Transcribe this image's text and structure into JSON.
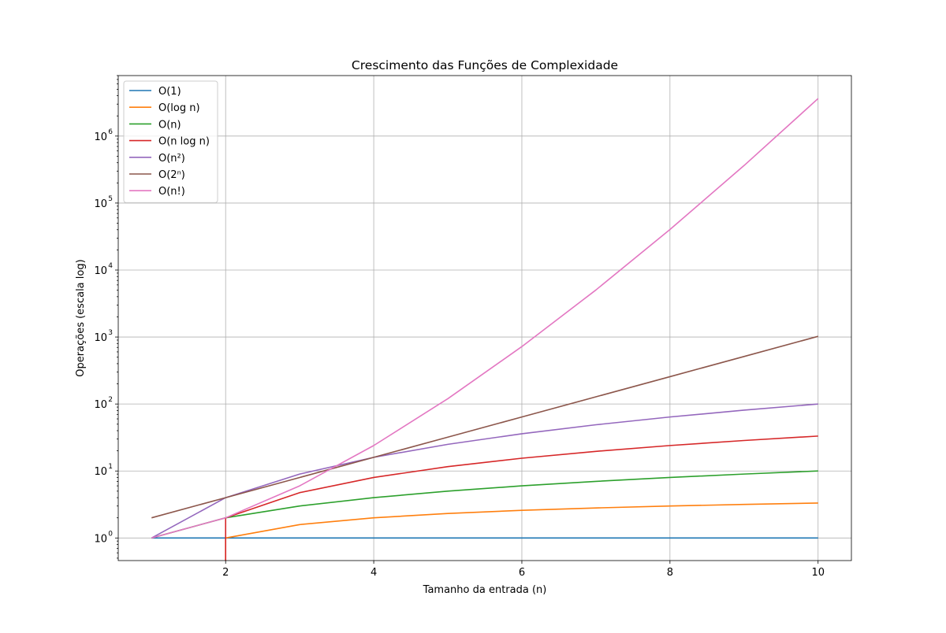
{
  "chart_data": {
    "type": "line",
    "title": "Crescimento das Funções de Complexidade",
    "xlabel": "Tamanho da entrada (n)",
    "ylabel": "Operações (escala log)",
    "xscale": "linear",
    "yscale": "log",
    "xlim": [
      0.55,
      10.45
    ],
    "ylim": [
      0.46,
      8000000
    ],
    "xticks": [
      2,
      4,
      6,
      8,
      10
    ],
    "xtick_labels": [
      "2",
      "4",
      "6",
      "8",
      "10"
    ],
    "yticks": [
      1,
      10,
      100,
      1000,
      10000,
      100000,
      1000000
    ],
    "ytick_labels": [
      "10",
      "10",
      "10",
      "10",
      "10",
      "10",
      "10"
    ],
    "ytick_exponents": [
      "0",
      "1",
      "2",
      "3",
      "4",
      "5",
      "6"
    ],
    "grid": true,
    "legend_position": "upper left",
    "x": [
      1,
      2,
      3,
      4,
      5,
      6,
      7,
      8,
      9,
      10
    ],
    "series": [
      {
        "name": "O(1)",
        "color": "#1f77b4",
        "values": [
          1,
          1,
          1,
          1,
          1,
          1,
          1,
          1,
          1,
          1
        ]
      },
      {
        "name": "O(log n)",
        "color": "#ff7f0e",
        "values": [
          0,
          1,
          1.585,
          2,
          2.322,
          2.585,
          2.807,
          3,
          3.17,
          3.322
        ]
      },
      {
        "name": "O(n)",
        "color": "#2ca02c",
        "values": [
          1,
          2,
          3,
          4,
          5,
          6,
          7,
          8,
          9,
          10
        ]
      },
      {
        "name": "O(n log n)",
        "color": "#d62728",
        "values": [
          0,
          2,
          4.755,
          8,
          11.61,
          15.51,
          19.65,
          24,
          28.53,
          33.22
        ]
      },
      {
        "name": "O(n²)",
        "color": "#9467bd",
        "values": [
          1,
          4,
          9,
          16,
          25,
          36,
          49,
          64,
          81,
          100
        ]
      },
      {
        "name": "O(2ⁿ)",
        "color": "#8c564b",
        "values": [
          2,
          4,
          8,
          16,
          32,
          64,
          128,
          256,
          512,
          1024
        ]
      },
      {
        "name": "O(n!)",
        "color": "#e377c2",
        "values": [
          1,
          2,
          6,
          24,
          120,
          720,
          5040,
          40320,
          362880,
          3628800
        ]
      }
    ]
  }
}
